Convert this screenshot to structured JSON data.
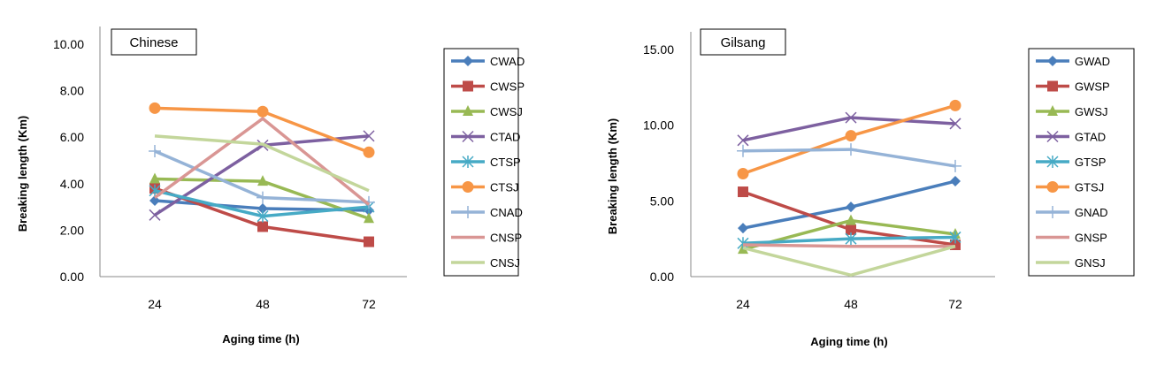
{
  "chart_data": [
    {
      "type": "line",
      "title": "Chinese",
      "xlabel": "Aging time (h)",
      "ylabel": "Breaking length (Km)",
      "categories": [
        "24",
        "48",
        "72"
      ],
      "ylim": [
        0,
        10
      ],
      "yticks": [
        "0.00",
        "2.00",
        "4.00",
        "6.00",
        "8.00",
        "10.00"
      ],
      "legend": "right",
      "series": [
        {
          "name": "CWAD",
          "color": "#4a7ebb",
          "marker": "diamond",
          "values": [
            3.27,
            2.93,
            2.85
          ]
        },
        {
          "name": "CWSP",
          "color": "#be4b48",
          "marker": "square",
          "values": [
            3.8,
            2.15,
            1.5
          ]
        },
        {
          "name": "CWSJ",
          "color": "#98b954",
          "marker": "triangle",
          "values": [
            4.2,
            4.1,
            2.5
          ]
        },
        {
          "name": "CTAD",
          "color": "#7d60a0",
          "marker": "x",
          "values": [
            2.65,
            5.65,
            6.05
          ]
        },
        {
          "name": "CTSP",
          "color": "#46aac5",
          "marker": "star",
          "values": [
            3.7,
            2.6,
            3.0
          ]
        },
        {
          "name": "CTSJ",
          "color": "#f79646",
          "marker": "circle",
          "values": [
            7.25,
            7.1,
            5.35
          ]
        },
        {
          "name": "CNAD",
          "color": "#95b3d7",
          "marker": "plus",
          "values": [
            5.4,
            3.4,
            3.2
          ]
        },
        {
          "name": "CNSP",
          "color": "#d99694",
          "marker": "none",
          "values": [
            3.4,
            6.8,
            3.1
          ]
        },
        {
          "name": "CNSJ",
          "color": "#c3d69b",
          "marker": "none",
          "values": [
            6.05,
            5.7,
            3.7
          ]
        }
      ]
    },
    {
      "type": "line",
      "title": "Gilsang",
      "xlabel": "Aging time (h)",
      "ylabel": "Breaking length (Km)",
      "categories": [
        "24",
        "48",
        "72"
      ],
      "ylim": [
        0,
        15
      ],
      "yticks": [
        "0.00",
        "5.00",
        "10.00",
        "15.00"
      ],
      "legend": "right",
      "series": [
        {
          "name": "GWAD",
          "color": "#4a7ebb",
          "marker": "diamond",
          "values": [
            3.2,
            4.6,
            6.3
          ]
        },
        {
          "name": "GWSP",
          "color": "#be4b48",
          "marker": "square",
          "values": [
            5.6,
            3.1,
            2.1
          ]
        },
        {
          "name": "GWSJ",
          "color": "#98b954",
          "marker": "triangle",
          "values": [
            1.8,
            3.7,
            2.8
          ]
        },
        {
          "name": "GTAD",
          "color": "#7d60a0",
          "marker": "x",
          "values": [
            9.0,
            10.5,
            10.1
          ]
        },
        {
          "name": "GTSP",
          "color": "#46aac5",
          "marker": "star",
          "values": [
            2.2,
            2.5,
            2.6
          ]
        },
        {
          "name": "GTSJ",
          "color": "#f79646",
          "marker": "circle",
          "values": [
            6.8,
            9.3,
            11.3
          ]
        },
        {
          "name": "GNAD",
          "color": "#95b3d7",
          "marker": "plus",
          "values": [
            8.3,
            8.4,
            7.3
          ]
        },
        {
          "name": "GNSP",
          "color": "#d99694",
          "marker": "none",
          "values": [
            2.1,
            2.0,
            2.0
          ]
        },
        {
          "name": "GNSJ",
          "color": "#c3d69b",
          "marker": "none",
          "values": [
            1.9,
            0.1,
            2.0
          ]
        }
      ]
    }
  ]
}
